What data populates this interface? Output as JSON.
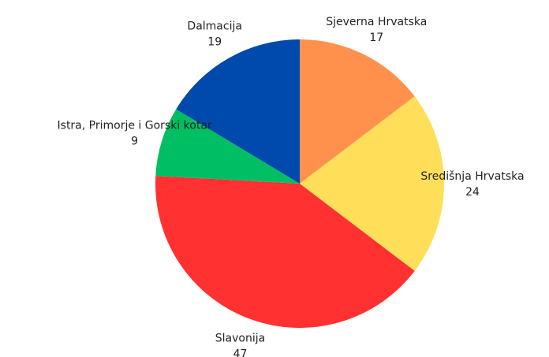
{
  "chart_data": {
    "type": "pie",
    "direction": "clockwise",
    "start": "top",
    "slices": [
      {
        "label": "Sjeverna Hrvatska",
        "value": 17,
        "color": "#FF914D"
      },
      {
        "label": "Središnja Hrvatska",
        "value": 24,
        "color": "#FFDE59"
      },
      {
        "label": "Slavonija",
        "value": 47,
        "color": "#FF3131"
      },
      {
        "label": "Istra, Primorje i Gorski kotar",
        "value": 9,
        "color": "#00BF63"
      },
      {
        "label": "Dalmacija",
        "value": 19,
        "color": "#004AAD"
      }
    ]
  }
}
